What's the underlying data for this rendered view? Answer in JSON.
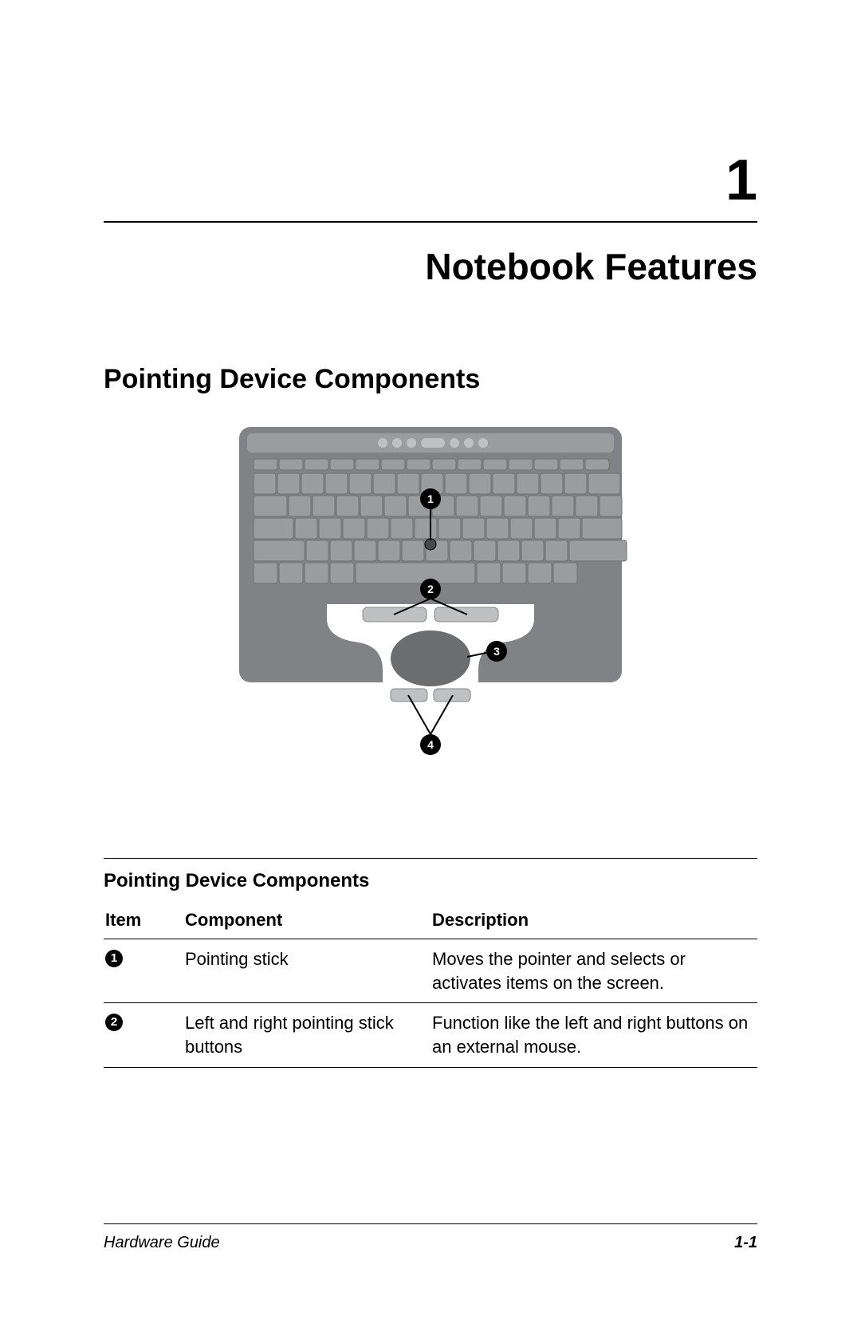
{
  "chapter": {
    "number": "1",
    "title": "Notebook Features"
  },
  "section": {
    "title": "Pointing Device Components"
  },
  "figure": {
    "bg_color": "#ffffff",
    "body_color": "#808285",
    "key_color": "#9a9c9e",
    "key_stroke": "#6f7173",
    "palmrest_hole_color": "#ffffff",
    "touchpad_color": "#6b6d6f",
    "button_color": "#bfc0c2",
    "callout_bg": "#000000",
    "callout_fg": "#ffffff",
    "callout_line": "#000000",
    "callouts": [
      "1",
      "2",
      "3",
      "4"
    ]
  },
  "table": {
    "title": "Pointing Device Components",
    "columns": [
      "Item",
      "Component",
      "Description"
    ],
    "rows": [
      {
        "item": "1",
        "component": "Pointing stick",
        "description": "Moves the pointer and selects or activates items on the screen."
      },
      {
        "item": "2",
        "component": "Left and right pointing stick buttons",
        "description": "Function like the left and right buttons on an external mouse."
      }
    ]
  },
  "footer": {
    "left": "Hardware Guide",
    "right": "1-1"
  }
}
